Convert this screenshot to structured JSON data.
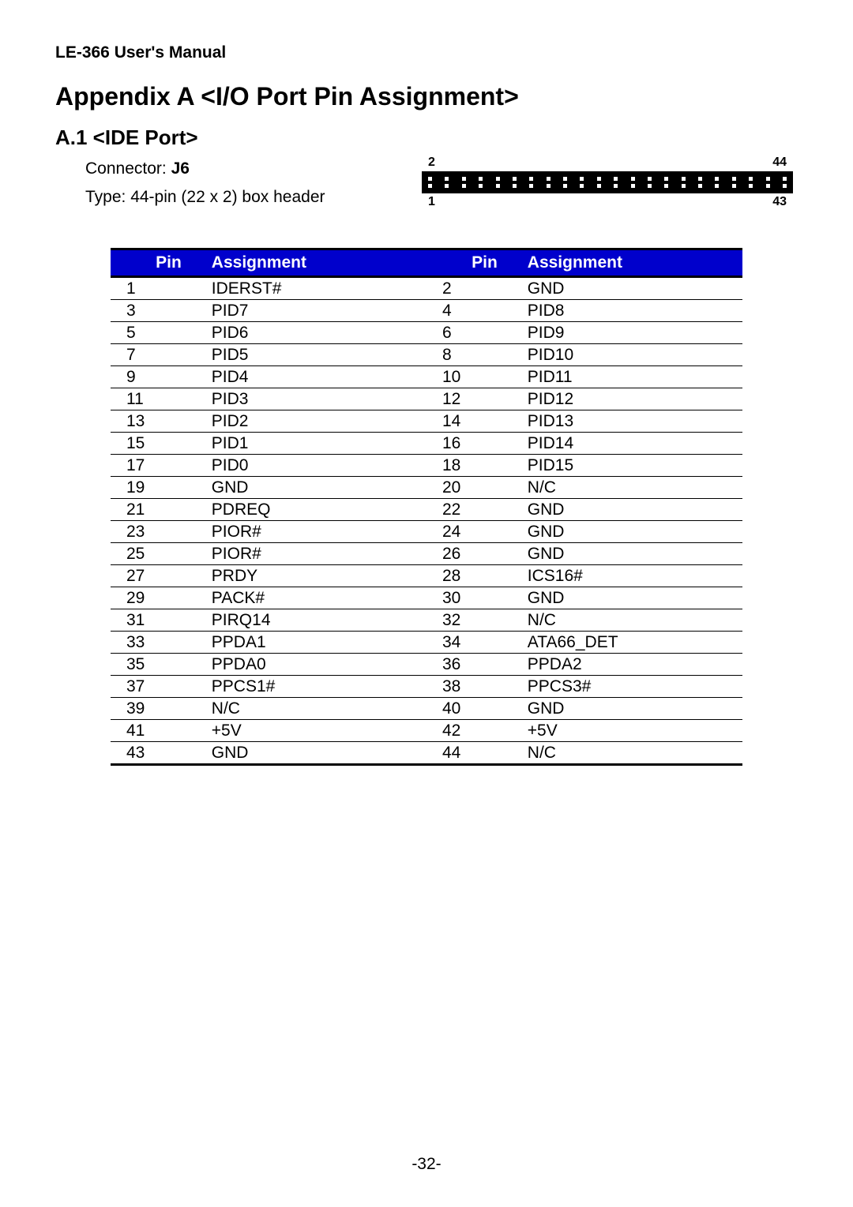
{
  "header": "LE-366 User's Manual",
  "appendix_title": "Appendix A <I/O Port Pin Assignment>",
  "section_title": "A.1 <IDE Port>",
  "connector_label": "Connector: ",
  "connector_name": "J6",
  "type_line": "Type: 44-pin (22 x 2) box header",
  "diagram": {
    "top_left": "2",
    "top_right": "44",
    "bottom_left": "1",
    "bottom_right": "43",
    "pins_per_row": 22
  },
  "table": {
    "header_color": "#0000cc",
    "header_text_color": "#ffffff",
    "columns": [
      "Pin",
      "Assignment",
      "Pin",
      "Assignment"
    ],
    "rows": [
      [
        "1",
        "IDERST#",
        "2",
        "GND"
      ],
      [
        "3",
        "PID7",
        "4",
        "PID8"
      ],
      [
        "5",
        "PID6",
        "6",
        "PID9"
      ],
      [
        "7",
        "PID5",
        "8",
        "PID10"
      ],
      [
        "9",
        "PID4",
        "10",
        "PID11"
      ],
      [
        "11",
        "PID3",
        "12",
        "PID12"
      ],
      [
        "13",
        "PID2",
        "14",
        "PID13"
      ],
      [
        "15",
        "PID1",
        "16",
        "PID14"
      ],
      [
        "17",
        "PID0",
        "18",
        "PID15"
      ],
      [
        "19",
        "GND",
        "20",
        "N/C"
      ],
      [
        "21",
        "PDREQ",
        "22",
        "GND"
      ],
      [
        "23",
        "PIOR#",
        "24",
        "GND"
      ],
      [
        "25",
        "PIOR#",
        "26",
        "GND"
      ],
      [
        "27",
        "PRDY",
        "28",
        "ICS16#"
      ],
      [
        "29",
        "PACK#",
        "30",
        "GND"
      ],
      [
        "31",
        "PIRQ14",
        "32",
        "N/C"
      ],
      [
        "33",
        "PPDA1",
        "34",
        "ATA66_DET"
      ],
      [
        "35",
        "PPDA0",
        "36",
        "PPDA2"
      ],
      [
        "37",
        "PPCS1#",
        "38",
        "PPCS3#"
      ],
      [
        "39",
        "N/C",
        "40",
        "GND"
      ],
      [
        "41",
        "+5V",
        "42",
        "+5V"
      ],
      [
        "43",
        "GND",
        "44",
        "N/C"
      ]
    ]
  },
  "page_number": "-32-"
}
